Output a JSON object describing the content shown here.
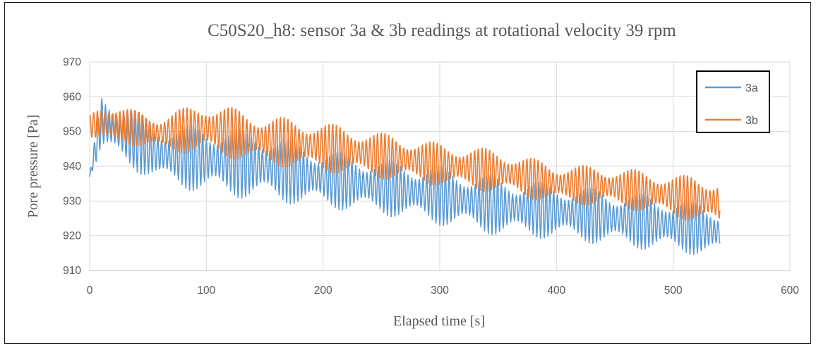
{
  "chart_data": {
    "type": "line",
    "title": "C50S20_h8: sensor 3a & 3b readings at rotational velocity 39 rpm",
    "xlabel": "Elapsed time [s]",
    "ylabel": "Pore pressure [Pa]",
    "xlim": [
      0,
      600
    ],
    "ylim": [
      910,
      970
    ],
    "xticks": [
      0,
      100,
      200,
      300,
      400,
      500,
      600
    ],
    "yticks": [
      910,
      920,
      930,
      940,
      950,
      960,
      970
    ],
    "grid": true,
    "legend_position": "top-right",
    "series": [
      {
        "name": "3a",
        "color": "#5B9BD5",
        "envelope": {
          "t": [
            0,
            10,
            30,
            60,
            100,
            150,
            200,
            250,
            300,
            350,
            400,
            450,
            500,
            540
          ],
          "upper": [
            937,
            962,
            958,
            952,
            952,
            950,
            945,
            942,
            940,
            937,
            935,
            933,
            931,
            928
          ],
          "lower": [
            937,
            944,
            940,
            935,
            932,
            930,
            928,
            926,
            923,
            920,
            919,
            917,
            915,
            914
          ]
        },
        "oscillation_period_s": 3.2
      },
      {
        "name": "3b",
        "color": "#ED7D31",
        "envelope": {
          "t": [
            0,
            10,
            30,
            60,
            100,
            150,
            200,
            250,
            300,
            350,
            400,
            450,
            500,
            540
          ],
          "upper": [
            955,
            960,
            957,
            955,
            959,
            955,
            953,
            950,
            947,
            945,
            941,
            940,
            938,
            937
          ],
          "lower": [
            948,
            945,
            946,
            944,
            943,
            940,
            938,
            936,
            934,
            932,
            929,
            928,
            925,
            922
          ]
        },
        "oscillation_period_s": 3.2
      }
    ]
  }
}
